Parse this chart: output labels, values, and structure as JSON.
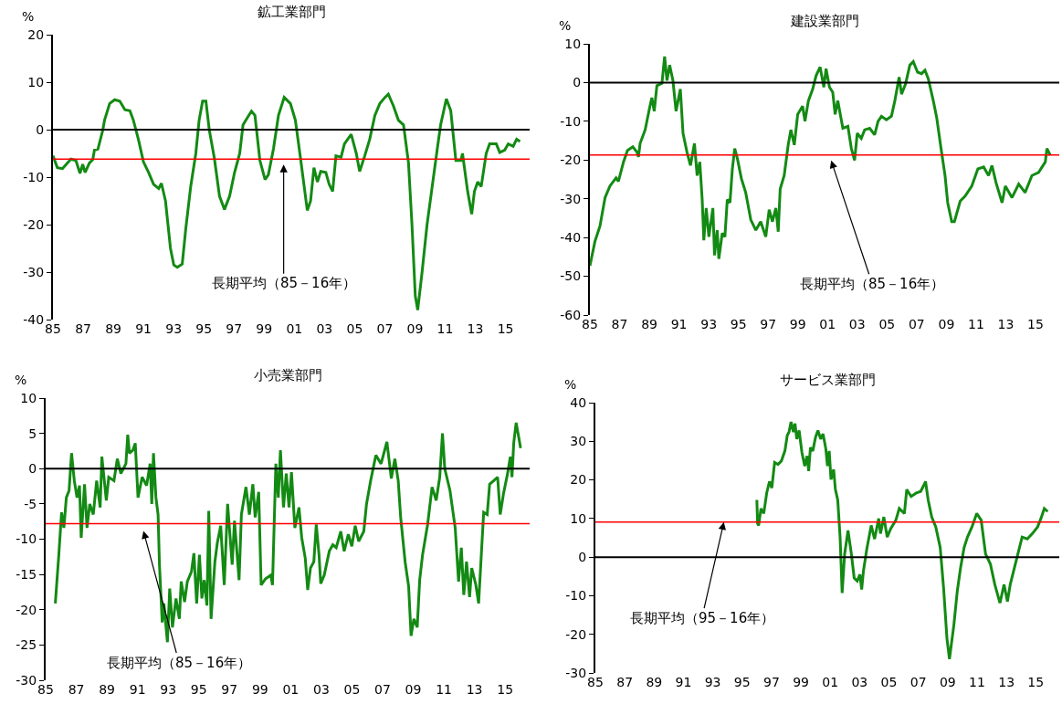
{
  "chart_data": [
    {
      "type": "line",
      "title": "鉱工業部門",
      "ylabel": "%",
      "color": "#138a13",
      "x": [
        1985.0,
        1985.29,
        1985.63,
        1985.96,
        1986.19,
        1986.52,
        1986.79,
        1986.97,
        1987.13,
        1987.42,
        1987.64,
        1987.75,
        1987.98,
        1988.31,
        1988.42,
        1988.76,
        1989.09,
        1989.43,
        1989.77,
        1990.1,
        1990.33,
        1990.66,
        1991.0,
        1991.34,
        1991.67,
        1992.01,
        1992.19,
        1992.46,
        1992.79,
        1993.01,
        1993.24,
        1993.57,
        1993.8,
        1994.13,
        1994.47,
        1994.69,
        1994.92,
        1995.14,
        1995.36,
        1995.7,
        1996.04,
        1996.37,
        1996.71,
        1997.04,
        1997.38,
        1997.6,
        1997.94,
        1998.16,
        1998.39,
        1998.72,
        1999.06,
        1999.28,
        1999.62,
        1999.95,
        2000.33,
        2000.74,
        2001.07,
        2001.41,
        2001.86,
        2002.08,
        2002.3,
        2002.53,
        2002.75,
        2003.09,
        2003.31,
        2003.54,
        2003.76,
        2004.1,
        2004.32,
        2004.77,
        2005.11,
        2005.33,
        2005.67,
        2006.0,
        2006.34,
        2006.67,
        2007.01,
        2007.23,
        2007.57,
        2007.9,
        2008.24,
        2008.57,
        2008.8,
        2009.02,
        2009.18,
        2009.47,
        2009.8,
        2010.14,
        2010.48,
        2010.7,
        2011.08,
        2011.37,
        2011.71,
        2012.04,
        2012.15,
        2012.49,
        2012.76,
        2012.94,
        2013.16,
        2013.39,
        2013.72,
        2013.95,
        2014.39,
        2014.62,
        2014.95,
        2015.18,
        2015.51,
        2015.74,
        2015.96
      ],
      "values": [
        -5.5,
        -8,
        -8.2,
        -7,
        -6.2,
        -6.5,
        -9.2,
        -7.3,
        -9,
        -7,
        -6.3,
        -4.3,
        -4.1,
        0,
        2,
        5.5,
        6.3,
        6,
        4.2,
        4,
        2,
        -2,
        -6.8,
        -9,
        -11.5,
        -12.4,
        -11.3,
        -15,
        -25,
        -28.5,
        -29,
        -28.3,
        -21,
        -12,
        -5,
        2,
        6,
        6,
        0,
        -6,
        -14,
        -16.8,
        -14,
        -9,
        -5,
        1,
        2.8,
        3.9,
        3,
        -6.5,
        -10.5,
        -9.5,
        -4,
        3,
        6.8,
        5.5,
        2,
        -6,
        -17,
        -15,
        -8,
        -11,
        -8.8,
        -9,
        -11.5,
        -13,
        -5.5,
        -5.8,
        -3,
        -1,
        -5,
        -8.8,
        -5.5,
        -2,
        3,
        5.5,
        6.8,
        7.5,
        5,
        2,
        1,
        -7,
        -20,
        -35,
        -38,
        -30,
        -20,
        -12,
        -4,
        1,
        6.5,
        4,
        -6.5,
        -6.5,
        -5,
        -13,
        -17.8,
        -13,
        -11,
        -12,
        -5,
        -3,
        -3,
        -4.8,
        -4.3,
        -3,
        -3.5,
        -2,
        -2.5
      ],
      "xlim": [
        1985,
        2016.6
      ],
      "xticks": [
        {
          "value": 1985,
          "label": "85"
        },
        {
          "value": 1987,
          "label": "87"
        },
        {
          "value": 1989,
          "label": "89"
        },
        {
          "value": 1991,
          "label": "91"
        },
        {
          "value": 1993,
          "label": "93"
        },
        {
          "value": 1995,
          "label": "95"
        },
        {
          "value": 1997,
          "label": "97"
        },
        {
          "value": 1999,
          "label": "99"
        },
        {
          "value": 2001,
          "label": "01"
        },
        {
          "value": 2003,
          "label": "03"
        },
        {
          "value": 2005,
          "label": "05"
        },
        {
          "value": 2007,
          "label": "07"
        },
        {
          "value": 2009,
          "label": "09"
        },
        {
          "value": 2011,
          "label": "11"
        },
        {
          "value": 2013,
          "label": "13"
        },
        {
          "value": 2015,
          "label": "15"
        }
      ],
      "ylim": [
        -40,
        20
      ],
      "yticks": [
        -40,
        -30,
        -20,
        -10,
        0,
        10,
        20
      ],
      "ref_lines": [
        {
          "axis": "y",
          "value": 0,
          "color": "#000000"
        },
        {
          "axis": "y",
          "value": -6.2,
          "color": "#ff0000",
          "label": "長期平均（85－16年）"
        }
      ]
    },
    {
      "type": "line",
      "title": "建設業部門",
      "ylabel": "%",
      "color": "#138a13",
      "x": [
        1985.0,
        1985.34,
        1985.68,
        1986.02,
        1986.35,
        1986.76,
        1986.92,
        1987.26,
        1987.53,
        1987.89,
        1988.16,
        1988.27,
        1988.38,
        1988.72,
        1989.02,
        1989.17,
        1989.33,
        1989.51,
        1989.85,
        1990.03,
        1990.19,
        1990.37,
        1990.59,
        1990.8,
        1991.09,
        1991.27,
        1991.54,
        1991.77,
        1992.04,
        1992.22,
        1992.4,
        1992.56,
        1992.67,
        1992.83,
        1993.01,
        1993.28,
        1993.39,
        1993.57,
        1993.68,
        1993.91,
        1994.09,
        1994.25,
        1994.43,
        1994.59,
        1994.75,
        1994.93,
        1995.2,
        1995.49,
        1995.83,
        1996.17,
        1996.5,
        1996.84,
        1997.07,
        1997.29,
        1997.52,
        1997.68,
        1997.81,
        1998.08,
        1998.35,
        1998.53,
        1998.76,
        1998.99,
        1999.32,
        1999.48,
        1999.71,
        2000.0,
        2000.23,
        2000.5,
        2000.75,
        2000.9,
        2001.13,
        2001.35,
        2001.51,
        2001.69,
        2002.03,
        2002.37,
        2002.6,
        2002.82,
        2003.0,
        2003.27,
        2003.5,
        2003.84,
        2004.17,
        2004.4,
        2004.63,
        2004.96,
        2005.3,
        2005.53,
        2005.82,
        2005.98,
        2006.25,
        2006.54,
        2006.77,
        2007.06,
        2007.33,
        2007.56,
        2007.78,
        2008.12,
        2008.35,
        2008.64,
        2008.91,
        2009.09,
        2009.36,
        2009.54,
        2009.93,
        2010.26,
        2010.71,
        2011.12,
        2011.51,
        2011.84,
        2012.07,
        2012.34,
        2012.75,
        2012.97,
        2013.42,
        2013.87,
        2014.3,
        2014.76,
        2015.21,
        2015.66,
        2015.77,
        2016.0
      ],
      "values": [
        -47.3,
        -41,
        -37,
        -29.7,
        -26.7,
        -24.6,
        -25.5,
        -20.5,
        -17.5,
        -16.6,
        -17.9,
        -19.2,
        -15.7,
        -12.2,
        -6.5,
        -3.9,
        -7.4,
        -0.8,
        -0.2,
        6.7,
        0.5,
        4.5,
        0.5,
        -7.4,
        -1.7,
        -13.1,
        -18,
        -21.4,
        -15.7,
        -24,
        -20.5,
        -30.2,
        -40.7,
        -32.4,
        -39.8,
        -32.4,
        -44.6,
        -38.1,
        -45.5,
        -38.9,
        -39.8,
        -30.2,
        -31,
        -22.3,
        -17,
        -19.6,
        -24.8,
        -28.4,
        -35.4,
        -38.1,
        -35.9,
        -39.8,
        -32.8,
        -35.9,
        -32.4,
        -38.5,
        -27.5,
        -24,
        -16.1,
        -12.2,
        -16.1,
        -8.2,
        -6.1,
        -10,
        -4.7,
        -1.7,
        1.8,
        4,
        -1.2,
        3.6,
        -1.2,
        -2.5,
        -8.2,
        -4.7,
        -11.8,
        -11.3,
        -17,
        -20.1,
        -13.1,
        -14.4,
        -12.2,
        -11.8,
        -13.5,
        -10,
        -8.7,
        -9.6,
        -8.7,
        -4.7,
        1.4,
        -3,
        -0.4,
        4.5,
        5.4,
        2.7,
        2.3,
        3.2,
        1,
        -4.7,
        -9.1,
        -17,
        -24,
        -31,
        -35.9,
        -35.9,
        -30.6,
        -29.3,
        -26.7,
        -22.3,
        -21.8,
        -24,
        -21.4,
        -25.8,
        -31,
        -26.7,
        -29.7,
        -26.2,
        -28.4,
        -24,
        -23.2,
        -20.5,
        -17,
        -18.8
      ],
      "xlim": [
        1985,
        2016.6
      ],
      "xticks": [
        {
          "value": 1985,
          "label": "85"
        },
        {
          "value": 1987,
          "label": "87"
        },
        {
          "value": 1989,
          "label": "89"
        },
        {
          "value": 1991,
          "label": "91"
        },
        {
          "value": 1993,
          "label": "93"
        },
        {
          "value": 1995,
          "label": "95"
        },
        {
          "value": 1997,
          "label": "97"
        },
        {
          "value": 1999,
          "label": "99"
        },
        {
          "value": 2001,
          "label": "01"
        },
        {
          "value": 2003,
          "label": "03"
        },
        {
          "value": 2005,
          "label": "05"
        },
        {
          "value": 2007,
          "label": "07"
        },
        {
          "value": 2009,
          "label": "09"
        },
        {
          "value": 2011,
          "label": "11"
        },
        {
          "value": 2013,
          "label": "13"
        },
        {
          "value": 2015,
          "label": "15"
        }
      ],
      "ylim": [
        -60,
        10
      ],
      "yticks": [
        -60,
        -50,
        -40,
        -30,
        -20,
        -10,
        0,
        10
      ],
      "ref_lines": [
        {
          "axis": "y",
          "value": 0,
          "color": "#000000"
        },
        {
          "axis": "y",
          "value": -18.7,
          "color": "#ff0000",
          "label": "長期平均（85－16年）"
        }
      ]
    },
    {
      "type": "line",
      "title": "小売業部門",
      "ylabel": "%",
      "color": "#138a13",
      "x": [
        1985.63,
        1985.86,
        1986.04,
        1986.19,
        1986.35,
        1986.53,
        1986.69,
        1986.87,
        1987.05,
        1987.21,
        1987.32,
        1987.54,
        1987.7,
        1987.88,
        1988.11,
        1988.33,
        1988.56,
        1988.67,
        1988.96,
        1989.12,
        1989.46,
        1989.68,
        1989.91,
        1990.24,
        1990.36,
        1990.47,
        1990.69,
        1990.85,
        1991.03,
        1991.3,
        1991.59,
        1991.82,
        1991.93,
        1992.04,
        1992.2,
        1992.34,
        1992.43,
        1992.61,
        1992.72,
        1992.95,
        1993.1,
        1993.28,
        1993.51,
        1993.73,
        1993.85,
        1994.07,
        1994.25,
        1994.52,
        1994.68,
        1994.86,
        1995.04,
        1995.2,
        1995.35,
        1995.53,
        1995.65,
        1995.8,
        1996.05,
        1996.21,
        1996.43,
        1996.66,
        1996.88,
        1997.18,
        1997.33,
        1997.63,
        1997.78,
        1998.08,
        1998.3,
        1998.53,
        1998.68,
        1998.91,
        1999.07,
        1999.36,
        1999.7,
        1999.81,
        2000.03,
        2000.19,
        2000.33,
        2000.53,
        2000.71,
        2000.89,
        2001.05,
        2001.27,
        2001.54,
        2001.72,
        2001.95,
        2002.11,
        2002.29,
        2002.51,
        2002.67,
        2002.85,
        2002.96,
        2003.19,
        2003.52,
        2003.75,
        2003.97,
        2004.27,
        2004.49,
        2004.76,
        2004.99,
        2005.21,
        2005.44,
        2005.77,
        2005.95,
        2006.22,
        2006.56,
        2006.9,
        2007.28,
        2007.57,
        2007.8,
        2008.02,
        2008.18,
        2008.47,
        2008.7,
        2008.86,
        2009.04,
        2009.26,
        2009.42,
        2009.61,
        2009.94,
        2010.23,
        2010.5,
        2010.73,
        2010.91,
        2011.06,
        2011.4,
        2011.74,
        2011.96,
        2012.14,
        2012.3,
        2012.48,
        2012.68,
        2012.82,
        2013.09,
        2013.27,
        2013.42,
        2013.6,
        2013.83,
        2013.99,
        2014.26,
        2014.51,
        2014.68,
        2014.89,
        2015.16,
        2015.34,
        2015.45,
        2015.56,
        2015.72,
        2015.9,
        2016.01
      ],
      "values": [
        -19.1,
        -12.2,
        -6.2,
        -8.4,
        -4.1,
        -3.1,
        2.2,
        -1.7,
        -4.1,
        -2.4,
        -9.8,
        -2.2,
        -8.4,
        -5,
        -6.5,
        -1.7,
        -5.5,
        1.7,
        -4.5,
        -1.2,
        -1.7,
        1.4,
        -0.7,
        0.7,
        4.8,
        2.2,
        2.6,
        3.6,
        -4.1,
        -1.2,
        -2.4,
        0.7,
        -5,
        2.2,
        -4.1,
        -6.5,
        -13.6,
        -21.8,
        -19.1,
        -24.6,
        -17,
        -22.5,
        -18.4,
        -21.3,
        -16,
        -18.9,
        -16,
        -14.6,
        -12,
        -19.1,
        -12.2,
        -18.4,
        -15.8,
        -19.4,
        -6,
        -21.3,
        -13.2,
        -10.5,
        -8.1,
        -16.5,
        -5,
        -13.6,
        -7.4,
        -15.8,
        -6.5,
        -2.6,
        -6.5,
        -2.2,
        -6.9,
        -3.3,
        -16.5,
        -15.6,
        -15.1,
        -16.5,
        0.7,
        -4.1,
        2.6,
        -5.5,
        -0.7,
        -5.5,
        -0.5,
        -8.4,
        -5.5,
        -9.8,
        -12.7,
        -17.2,
        -14.1,
        -13.2,
        -7.9,
        -12.2,
        -16.3,
        -15.1,
        -11.7,
        -10.8,
        -11.2,
        -8.9,
        -11.7,
        -9.3,
        -11,
        -8.1,
        -10.3,
        -8.9,
        -5,
        -1.7,
        1.9,
        0.7,
        3.8,
        -1.4,
        1.4,
        -1.7,
        -6.9,
        -13.2,
        -16.7,
        -23.7,
        -21.3,
        -22.5,
        -15.8,
        -12.2,
        -7.9,
        -2.6,
        -4.5,
        -1.2,
        5,
        0,
        -3.1,
        -8.4,
        -16,
        -11.2,
        -17.9,
        -13.2,
        -18.2,
        -14.1,
        -16.5,
        -19.1,
        -13.2,
        -6.2,
        -6.5,
        -2.2,
        -1.7,
        -1.2,
        -6.5,
        -3.6,
        -0.7,
        1.7,
        -1.2,
        3.6,
        6.5,
        4.3,
        2.9
      ],
      "xlim": [
        1985,
        2016.6
      ],
      "xticks": [
        {
          "value": 1985,
          "label": "85"
        },
        {
          "value": 1987,
          "label": "87"
        },
        {
          "value": 1989,
          "label": "89"
        },
        {
          "value": 1991,
          "label": "91"
        },
        {
          "value": 1993,
          "label": "93"
        },
        {
          "value": 1995,
          "label": "95"
        },
        {
          "value": 1997,
          "label": "97"
        },
        {
          "value": 1999,
          "label": "99"
        },
        {
          "value": 2001,
          "label": "01"
        },
        {
          "value": 2003,
          "label": "03"
        },
        {
          "value": 2005,
          "label": "05"
        },
        {
          "value": 2007,
          "label": "07"
        },
        {
          "value": 2009,
          "label": "09"
        },
        {
          "value": 2011,
          "label": "11"
        },
        {
          "value": 2013,
          "label": "13"
        },
        {
          "value": 2015,
          "label": "15"
        }
      ],
      "ylim": [
        -30,
        10
      ],
      "yticks": [
        -30,
        -25,
        -20,
        -15,
        -10,
        -5,
        0,
        5,
        10
      ],
      "ref_lines": [
        {
          "axis": "y",
          "value": 0,
          "color": "#000000"
        },
        {
          "axis": "y",
          "value": -7.8,
          "color": "#ff0000",
          "label": "長期平均（85－16年）"
        }
      ]
    },
    {
      "type": "line",
      "title": "サービス業部門",
      "ylabel": "%",
      "color": "#138a13",
      "x": [
        1996.0,
        1996.05,
        1996.12,
        1996.28,
        1996.47,
        1996.67,
        1996.86,
        1997.02,
        1997.21,
        1997.44,
        1997.67,
        1997.91,
        1998.07,
        1998.19,
        1998.33,
        1998.49,
        1998.6,
        1998.72,
        1998.88,
        1999.07,
        1999.26,
        1999.42,
        1999.53,
        1999.65,
        1999.81,
        2000.0,
        2000.16,
        2000.35,
        2000.51,
        2000.7,
        2000.81,
        2000.93,
        2001.05,
        2001.23,
        2001.35,
        2001.51,
        2001.67,
        2001.81,
        2001.98,
        2002.21,
        2002.44,
        2002.63,
        2002.84,
        2003.02,
        2003.14,
        2003.26,
        2003.49,
        2003.79,
        2004.02,
        2004.3,
        2004.42,
        2004.65,
        2004.88,
        2005.12,
        2005.47,
        2005.7,
        2006.05,
        2006.21,
        2006.51,
        2006.86,
        2007.16,
        2007.33,
        2007.49,
        2007.67,
        2007.91,
        2008.19,
        2008.49,
        2008.72,
        2008.95,
        2009.12,
        2009.42,
        2009.65,
        2009.88,
        2010.12,
        2010.35,
        2010.65,
        2010.98,
        2011.28,
        2011.58,
        2011.91,
        2012.21,
        2012.56,
        2012.84,
        2013.07,
        2013.26,
        2013.49,
        2013.84,
        2014.07,
        2014.42,
        2014.77,
        2015.12,
        2015.35,
        2015.58,
        2015.81
      ],
      "values": [
        14.8,
        8.7,
        8.2,
        12.6,
        11.3,
        16.6,
        19.6,
        17.9,
        24.5,
        24,
        24.9,
        27.5,
        31.5,
        32.4,
        35,
        32.4,
        34.6,
        30.6,
        32.8,
        27.1,
        23.6,
        26.2,
        22.3,
        28.4,
        27.5,
        31.1,
        32.8,
        30.6,
        31.9,
        28,
        23.6,
        27.5,
        20.1,
        22.7,
        17.5,
        14.8,
        5.2,
        -9.3,
        0.8,
        6.9,
        0.8,
        -5.4,
        -6.2,
        -4.5,
        -8.4,
        -3.6,
        2.1,
        8.2,
        4.7,
        10,
        6.1,
        10.4,
        5.2,
        7.4,
        9.6,
        12.6,
        11.3,
        17.5,
        15.7,
        16.6,
        17,
        18.3,
        19.6,
        14.8,
        10.4,
        7.8,
        2.5,
        -8,
        -21.1,
        -26.4,
        -17.6,
        -8.9,
        -2.7,
        2.5,
        5.2,
        7.8,
        11.3,
        9.6,
        0.8,
        -1.8,
        -7.1,
        -11.9,
        -7.1,
        -11.5,
        -7.1,
        -3.6,
        1.7,
        5.2,
        4.7,
        6.1,
        7.8,
        10,
        12.6,
        11.8
      ],
      "xlim": [
        1985,
        2016.6
      ],
      "xticks": [
        {
          "value": 1985,
          "label": "85"
        },
        {
          "value": 1987,
          "label": "87"
        },
        {
          "value": 1989,
          "label": "89"
        },
        {
          "value": 1991,
          "label": "91"
        },
        {
          "value": 1993,
          "label": "93"
        },
        {
          "value": 1995,
          "label": "95"
        },
        {
          "value": 1997,
          "label": "97"
        },
        {
          "value": 1999,
          "label": "99"
        },
        {
          "value": 2001,
          "label": "01"
        },
        {
          "value": 2003,
          "label": "03"
        },
        {
          "value": 2005,
          "label": "05"
        },
        {
          "value": 2007,
          "label": "07"
        },
        {
          "value": 2009,
          "label": "09"
        },
        {
          "value": 2011,
          "label": "11"
        },
        {
          "value": 2013,
          "label": "13"
        },
        {
          "value": 2015,
          "label": "15"
        }
      ],
      "ylim": [
        -30,
        40
      ],
      "yticks": [
        -30,
        -20,
        -10,
        0,
        10,
        20,
        30,
        40
      ],
      "ref_lines": [
        {
          "axis": "y",
          "value": 0,
          "color": "#000000"
        },
        {
          "axis": "y",
          "value": 9.1,
          "color": "#ff0000",
          "label": "長期平均（95－16年）"
        }
      ]
    }
  ]
}
